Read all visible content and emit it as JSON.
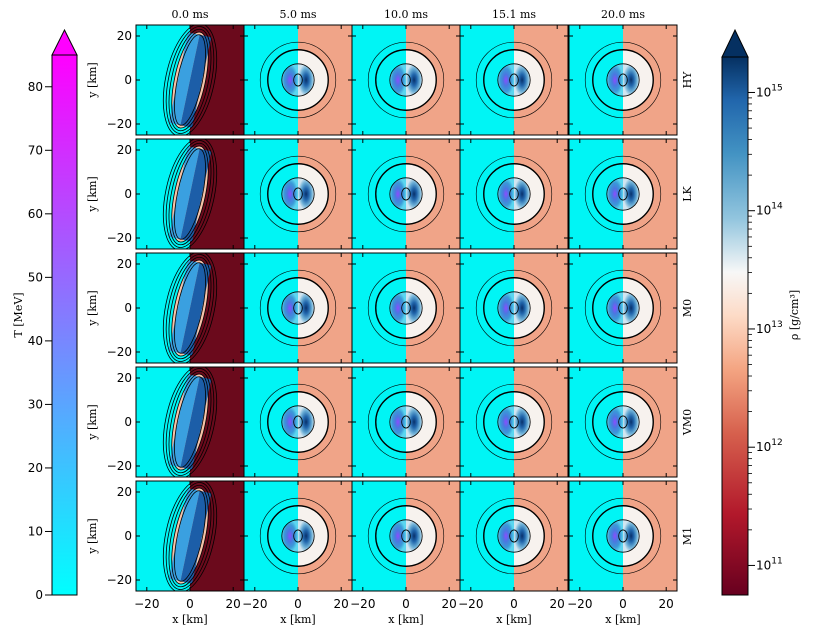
{
  "chart_data": {
    "type": "heatmap",
    "title": "",
    "time_labels": [
      "0.0 ms",
      "5.0 ms",
      "10.0 ms",
      "15.1 ms",
      "20.0 ms"
    ],
    "models": [
      "HY",
      "LK",
      "M0",
      "VM0",
      "M1"
    ],
    "xlabel": "x [km]",
    "ylabel": "y [km]",
    "xlim": [
      -25,
      25
    ],
    "ylim": [
      -25,
      25
    ],
    "x_ticks": [
      -20,
      0,
      20
    ],
    "y_ticks": [
      20,
      0,
      -20
    ],
    "x_tick_labels": [
      "−20",
      "0",
      "20"
    ],
    "y_tick_labels": [
      "20",
      "0",
      "−20"
    ],
    "colorbar_T": {
      "label": "T [MeV]",
      "range": [
        0,
        85
      ],
      "ticks": [
        0,
        10,
        20,
        30,
        40,
        50,
        60,
        70,
        80
      ],
      "tick_labels": [
        "0",
        "10",
        "20",
        "30",
        "40",
        "50",
        "60",
        "70",
        "80"
      ],
      "colors": [
        "#00ffff",
        "#ff00ff"
      ]
    },
    "colorbar_rho": {
      "label": "ρ [g/cm³]",
      "range_log10": [
        10.75,
        15.3
      ],
      "ticks_log10": [
        11,
        12,
        13,
        14,
        15
      ],
      "tick_bases": [
        "10",
        "10",
        "10",
        "10",
        "10"
      ],
      "tick_exponents": [
        "11",
        "12",
        "13",
        "14",
        "15"
      ],
      "colormap": "RdBu"
    }
  }
}
